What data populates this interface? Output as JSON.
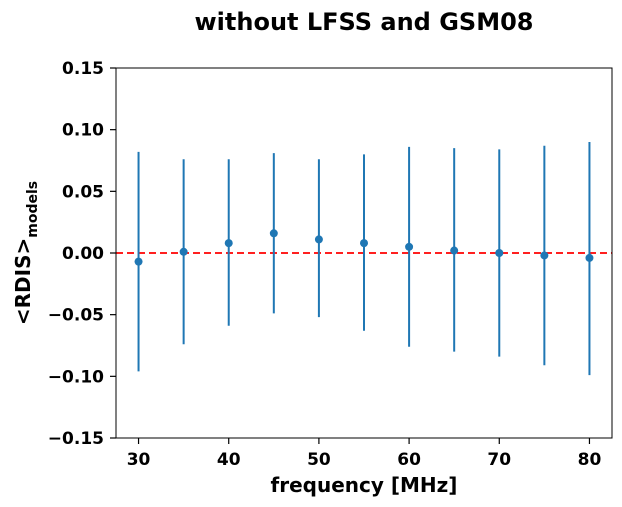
{
  "chart_data": {
    "type": "scatter",
    "title": "without LFSS and GSM08",
    "xlabel": "frequency [MHz]",
    "ylabel_main": "<RDIS>",
    "ylabel_sub": "models",
    "xlim": [
      27.5,
      82.5
    ],
    "ylim": [
      -0.15,
      0.15
    ],
    "xticks": [
      30,
      40,
      50,
      60,
      70,
      80
    ],
    "xtick_labels": [
      "30",
      "40",
      "50",
      "60",
      "70",
      "80"
    ],
    "yticks": [
      -0.15,
      -0.1,
      -0.05,
      0.0,
      0.05,
      0.1,
      0.15
    ],
    "ytick_labels": [
      "−0.15",
      "−0.10",
      "−0.05",
      "0.00",
      "0.05",
      "0.10",
      "0.15"
    ],
    "grid": false,
    "reference_line": {
      "y": 0.0,
      "color": "#ff0000",
      "style": "dashed"
    },
    "series": [
      {
        "color": "#1f77b4",
        "x": [
          30,
          35,
          40,
          45,
          50,
          55,
          60,
          65,
          70,
          75,
          80
        ],
        "y": [
          -0.007,
          0.001,
          0.008,
          0.016,
          0.011,
          0.008,
          0.005,
          0.002,
          0.0,
          -0.002,
          -0.004
        ],
        "err_low": [
          -0.096,
          -0.074,
          -0.059,
          -0.049,
          -0.052,
          -0.063,
          -0.076,
          -0.08,
          -0.084,
          -0.091,
          -0.099
        ],
        "err_high": [
          0.082,
          0.076,
          0.076,
          0.081,
          0.076,
          0.08,
          0.086,
          0.085,
          0.084,
          0.087,
          0.09
        ]
      }
    ]
  }
}
